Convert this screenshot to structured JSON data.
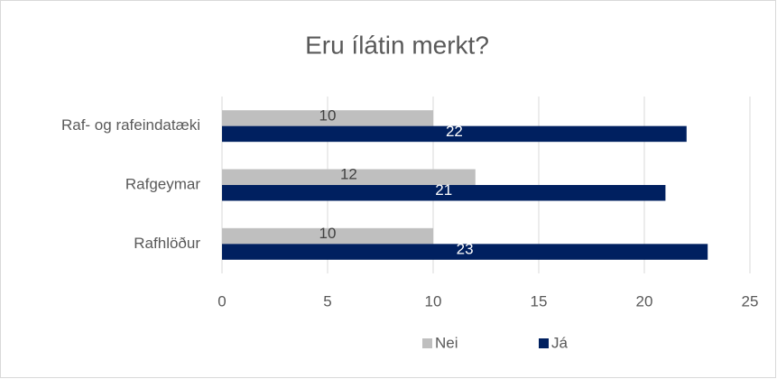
{
  "chart_data": {
    "type": "hbar",
    "title": "Eru ílátin merkt?",
    "categories": [
      "Raf- og rafeindatæki",
      "Rafgeymar",
      "Rafhlöður"
    ],
    "series": [
      {
        "name": "Nei",
        "color": "#bfbfbf",
        "values": [
          10,
          12,
          10
        ]
      },
      {
        "name": "Já",
        "color": "#002060",
        "values": [
          22,
          21,
          23
        ]
      }
    ],
    "xlim": [
      0,
      25
    ],
    "xticks": [
      0,
      5,
      10,
      15,
      20,
      25
    ],
    "grid": true,
    "legend": "bottom"
  }
}
